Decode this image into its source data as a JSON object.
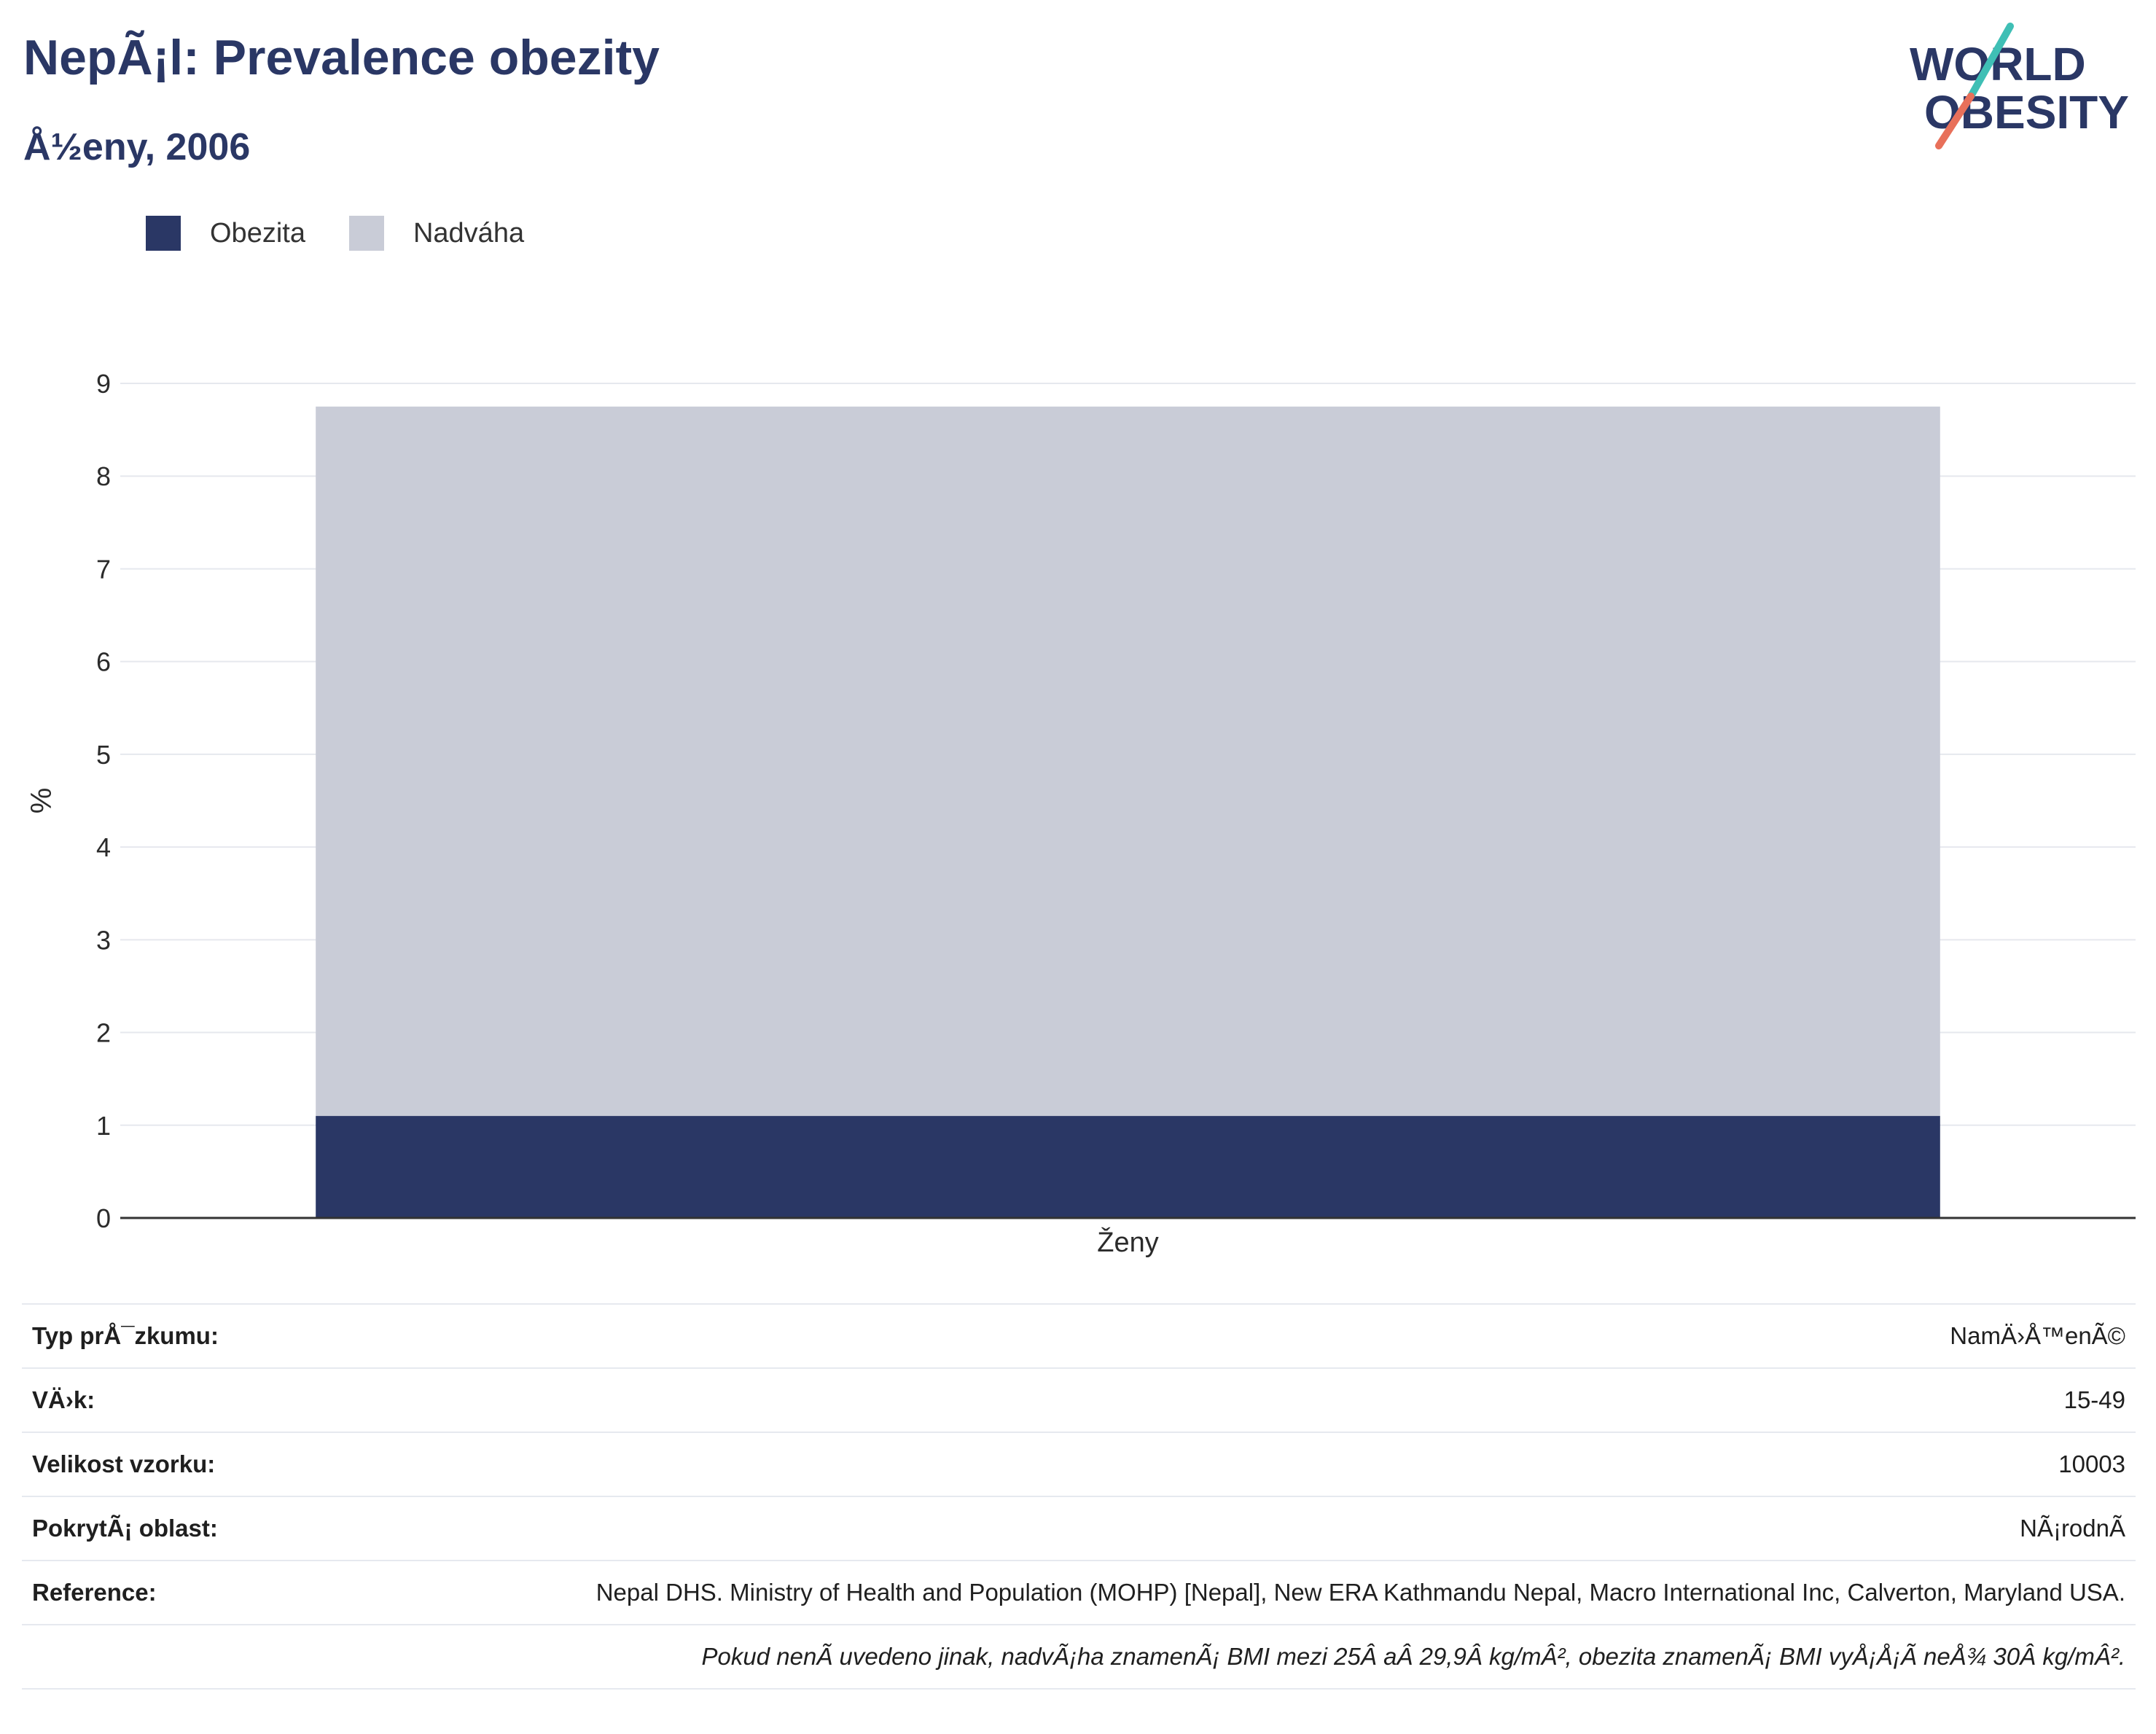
{
  "header": {
    "title": "NepÃ¡l: Prevalence obezity",
    "subtitle": "Å½eny, 2006"
  },
  "logo": {
    "line1": "WORLD",
    "line2": "OBESITY",
    "text_color": "#2a3765",
    "accent_teal": "#3fbfb5",
    "accent_coral": "#e8705a"
  },
  "legend": {
    "items": [
      {
        "label": "Obezita",
        "color": "#2a3765"
      },
      {
        "label": "Nadváha",
        "color": "#c9ccd7"
      }
    ]
  },
  "chart_data": {
    "type": "bar",
    "stacked": true,
    "categories": [
      "Ženy"
    ],
    "series": [
      {
        "name": "Obezita",
        "values": [
          1.1
        ],
        "color": "#2a3765"
      },
      {
        "name": "Nadváha",
        "values": [
          7.65
        ],
        "color": "#c9ccd7"
      }
    ],
    "title": "NepÃ¡l: Prevalence obezity",
    "subtitle": "Å½eny, 2006",
    "xlabel": "",
    "ylabel": "%",
    "ylim": [
      0,
      9
    ],
    "yticks": [
      0,
      1,
      2,
      3,
      4,
      5,
      6,
      7,
      8,
      9
    ],
    "grid": true,
    "legend_position": "top-left"
  },
  "info": {
    "rows": [
      {
        "label": "Typ prÅ¯zkumu:",
        "value": "NamÄ›Å™enÃ©"
      },
      {
        "label": "VÄ›k:",
        "value": "15-49"
      },
      {
        "label": "Velikost vzorku:",
        "value": "10003"
      },
      {
        "label": "PokrytÃ¡ oblast:",
        "value": "NÃ¡rodnÃ"
      },
      {
        "label": "Reference:",
        "value": "Nepal DHS. Ministry of Health and Population (MOHP) [Nepal], New ERA Kathmandu Nepal, Macro International Inc, Calverton, Maryland USA."
      }
    ],
    "note": "Pokud nenÃ uvedeno jinak, nadvÃ¡ha znamenÃ¡ BMI mezi 25Â aÂ 29,9Â kg/mÂ², obezita znamenÃ¡ BMI vyÅ¡Å¡Ã neÅ¾ 30Â kg/mÂ²."
  }
}
